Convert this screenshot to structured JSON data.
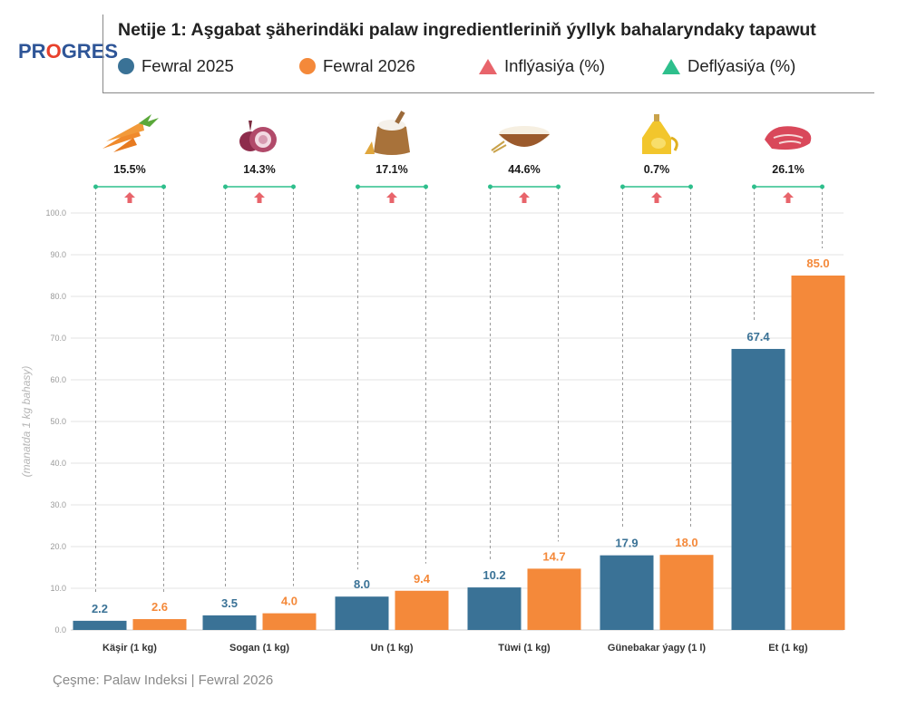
{
  "brand": {
    "logo_pre": "PR",
    "logo_o": "O",
    "logo_post": "GRES"
  },
  "title": "Netije 1: Aşgabat şäherindäki palaw ingredientleriniň ýyllyk bahalaryndaky tapawut",
  "legend": {
    "series_2025": "Fewral 2025",
    "series_2026": "Fewral 2026",
    "inflation": "Inflýasiýa (%)",
    "deflation": "Deflýasiýa (%)"
  },
  "colors": {
    "blue": "#3a7296",
    "orange": "#f4893a",
    "inflation": "#e8646b",
    "deflation": "#2ebf8c",
    "bracket": "#2ebf8c"
  },
  "source": "Çeşme: Palaw Indeksi | Fewral 2026",
  "chart_data": {
    "type": "bar",
    "categories": [
      "Käşir (1 kg)",
      "Sogan (1 kg)",
      "Un (1 kg)",
      "Tüwi (1 kg)",
      "Günebakar ýagy (1 l)",
      "Et (1 kg)"
    ],
    "category_icons": [
      "carrot-icon",
      "onion-icon",
      "flour-sack-icon",
      "rice-bowl-icon",
      "oil-bottle-icon",
      "meat-steak-icon"
    ],
    "series": [
      {
        "name": "Fewral 2025",
        "values": [
          2.2,
          3.5,
          8.0,
          10.2,
          17.9,
          67.4
        ],
        "labels": [
          "2.2",
          "3.5",
          "8.0",
          "10.2",
          "17.9",
          "67.4"
        ]
      },
      {
        "name": "Fewral 2026",
        "values": [
          2.6,
          4.0,
          9.4,
          14.7,
          18.0,
          85.0
        ],
        "labels": [
          "2.6",
          "4.0",
          "9.4",
          "14.7",
          "18.0",
          "85.0"
        ]
      }
    ],
    "change_labels": [
      "15.5%",
      "14.3%",
      "17.1%",
      "44.6%",
      "0.7%",
      "26.1%"
    ],
    "change_direction": [
      "inflation",
      "inflation",
      "inflation",
      "inflation",
      "inflation",
      "inflation"
    ],
    "ylabel": "(manatda 1 kg bahasy)",
    "ylim": [
      0,
      100
    ],
    "yticks": [
      "0.0",
      "10.0",
      "20.0",
      "30.0",
      "40.0",
      "50.0",
      "60.0",
      "70.0",
      "80.0",
      "90.0",
      "100.0"
    ],
    "grid": true,
    "legend_position": "top"
  }
}
